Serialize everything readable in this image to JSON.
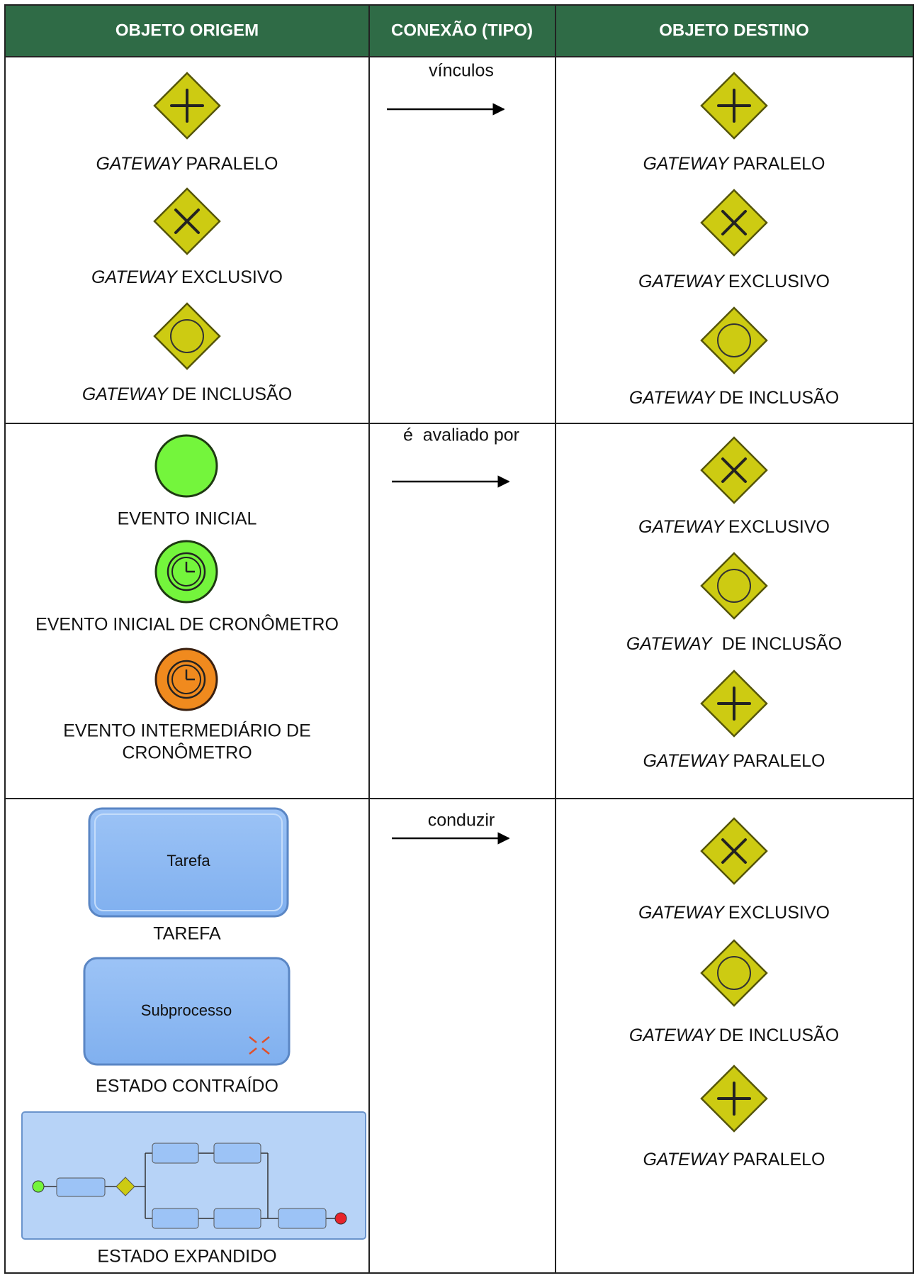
{
  "table": {
    "headers": [
      "OBJETO ORIGEM",
      "CONEXÃO (TIPO)",
      "OBJETO DESTINO"
    ],
    "rows": [
      {
        "source": [
          {
            "emphasis": "GATEWAY",
            "text": "PARALELO"
          },
          {
            "emphasis": "GATEWAY",
            "text": "EXCLUSIVO"
          },
          {
            "emphasis": "GATEWAY",
            "text": "DE INCLUSÃO"
          }
        ],
        "connection": "vínculos",
        "target": [
          {
            "emphasis": "GATEWAY",
            "text": "PARALELO"
          },
          {
            "emphasis": "GATEWAY",
            "text": "EXCLUSIVO"
          },
          {
            "emphasis": "GATEWAY",
            "text": "DE INCLUSÃO"
          }
        ]
      },
      {
        "source": [
          {
            "text": "EVENTO INICIAL"
          },
          {
            "text": "EVENTO INICIAL DE CRONÔMETRO"
          },
          {
            "lines": [
              "EVENTO INTERMEDIÁRIO DE",
              "CRONÔMETRO"
            ]
          }
        ],
        "connection": "é  avaliado por",
        "target": [
          {
            "emphasis": "GATEWAY",
            "text": "EXCLUSIVO"
          },
          {
            "emphasis": "GATEWAY",
            "text": "DE INCLUSÃO"
          },
          {
            "emphasis": "GATEWAY",
            "text": "PARALELO"
          }
        ]
      },
      {
        "source": [
          {
            "icon_label": "Tarefa",
            "text": "TAREFA"
          },
          {
            "icon_label": "Subprocesso",
            "text": "ESTADO CONTRAÍDO"
          },
          {
            "text": "ESTADO EXPANDIDO"
          }
        ],
        "connection": "conduzir",
        "target": [
          {
            "emphasis": "GATEWAY",
            "text": "EXCLUSIVO"
          },
          {
            "emphasis": "GATEWAY",
            "text": "DE INCLUSÃO"
          },
          {
            "emphasis": "GATEWAY",
            "text": "PARALELO"
          }
        ]
      }
    ]
  }
}
